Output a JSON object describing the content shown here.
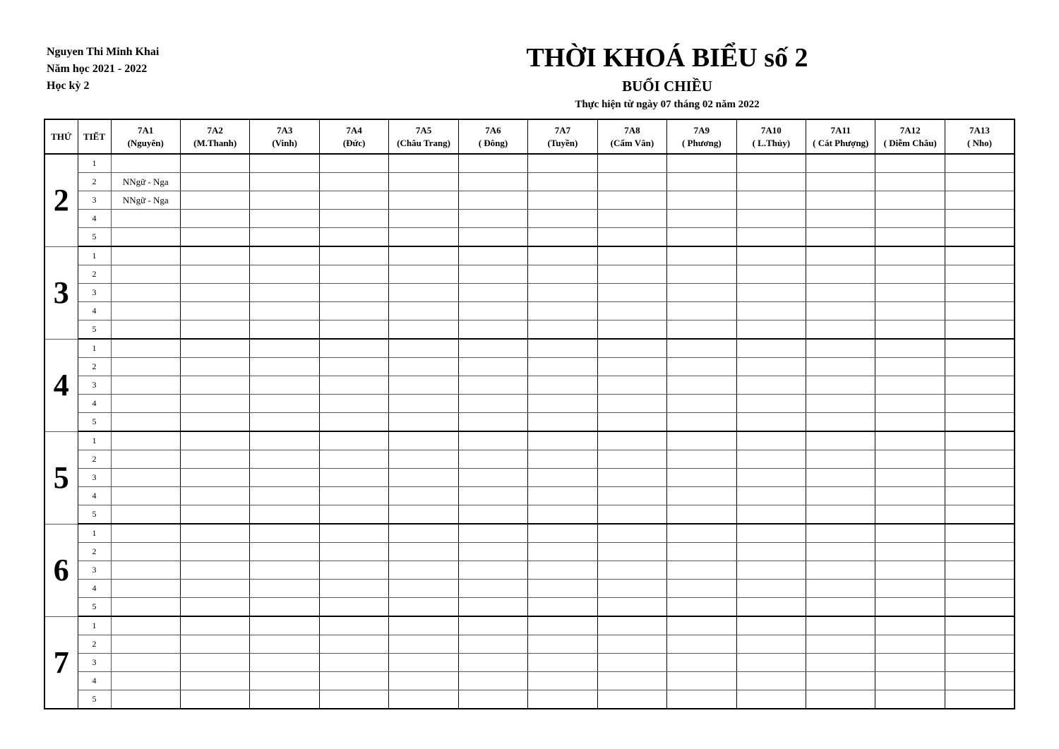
{
  "header": {
    "school": "Nguyen Thi Minh Khai",
    "year": "Năm học 2021 - 2022",
    "term": "Học kỳ 2",
    "title": "THỜI KHOÁ BIỂU số 2",
    "session": "BUỔI CHIỀU",
    "effective": "Thực hiện từ ngày 07 tháng 02 năm 2022"
  },
  "table": {
    "day_header": "THỨ",
    "period_header": "TIẾT",
    "classes": [
      {
        "name": "7A1",
        "teacher": "(Nguyên)"
      },
      {
        "name": "7A2",
        "teacher": "(M.Thanh)"
      },
      {
        "name": "7A3",
        "teacher": "(Vinh)"
      },
      {
        "name": "7A4",
        "teacher": "(Đức)"
      },
      {
        "name": "7A5",
        "teacher": "(Châu Trang)"
      },
      {
        "name": "7A6",
        "teacher": "( Đông)"
      },
      {
        "name": "7A7",
        "teacher": "(Tuyền)"
      },
      {
        "name": "7A8",
        "teacher": "(Cẩm Vân)"
      },
      {
        "name": "7A9",
        "teacher": "( Phương)"
      },
      {
        "name": "7A10",
        "teacher": "(  L.Thủy)"
      },
      {
        "name": "7A11",
        "teacher": "( Cát Phượng)"
      },
      {
        "name": "7A12",
        "teacher": "( Diễm Châu)"
      },
      {
        "name": "7A13",
        "teacher": "( Nho)"
      }
    ],
    "days": [
      {
        "day": "2",
        "periods": [
          [
            "",
            "",
            "",
            "",
            "",
            "",
            "",
            "",
            "",
            "",
            "",
            "",
            ""
          ],
          [
            "NNgữ - Nga",
            "",
            "",
            "",
            "",
            "",
            "",
            "",
            "",
            "",
            "",
            "",
            ""
          ],
          [
            "NNgữ - Nga",
            "",
            "",
            "",
            "",
            "",
            "",
            "",
            "",
            "",
            "",
            "",
            ""
          ],
          [
            "",
            "",
            "",
            "",
            "",
            "",
            "",
            "",
            "",
            "",
            "",
            "",
            ""
          ],
          [
            "",
            "",
            "",
            "",
            "",
            "",
            "",
            "",
            "",
            "",
            "",
            "",
            ""
          ]
        ]
      },
      {
        "day": "3",
        "periods": []
      },
      {
        "day": "4",
        "periods": []
      },
      {
        "day": "5",
        "periods": []
      },
      {
        "day": "6",
        "periods": []
      },
      {
        "day": "7",
        "periods": []
      }
    ],
    "period_labels": [
      "1",
      "2",
      "3",
      "4",
      "5"
    ]
  }
}
